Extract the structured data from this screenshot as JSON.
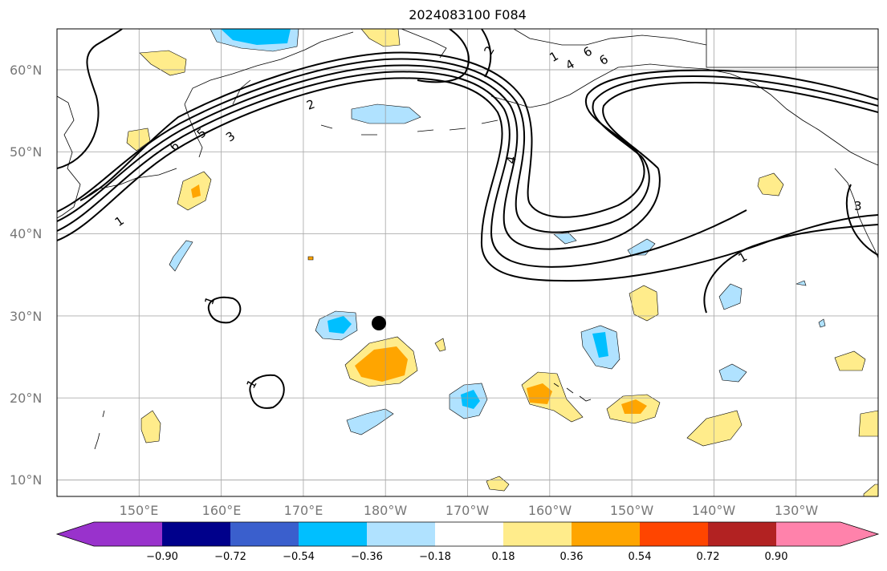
{
  "title": "2024083100 F084",
  "map": {
    "projection": "PlateCarree",
    "lon_range": [
      140,
      240
    ],
    "lat_range": [
      8,
      65
    ],
    "lat_labels": [
      "10°N",
      "20°N",
      "30°N",
      "40°N",
      "50°N",
      "60°N"
    ],
    "lon_labels": [
      "150°E",
      "160°E",
      "170°E",
      "180°W",
      "170°W",
      "160°W",
      "150°W",
      "140°W",
      "130°W"
    ],
    "contour_labels": [
      "1",
      "1",
      "1",
      "1",
      "1",
      "2",
      "2",
      "3",
      "3",
      "4",
      "4",
      "5",
      "6",
      "6",
      "6"
    ],
    "storm_marker": {
      "lon": 179.2,
      "lat": 29.1
    }
  },
  "colorbar": {
    "ticks": [
      "−0.90",
      "−0.72",
      "−0.54",
      "−0.36",
      "−0.18",
      "0.18",
      "0.36",
      "0.54",
      "0.72",
      "0.90"
    ],
    "colors": [
      "#9932cc",
      "#00008b",
      "#3a5fcd",
      "#00bfff",
      "#b0e2ff",
      "#ffffff",
      "#ffec8b",
      "#ffa500",
      "#ff4500",
      "#b22222",
      "#ff82ab"
    ]
  }
}
